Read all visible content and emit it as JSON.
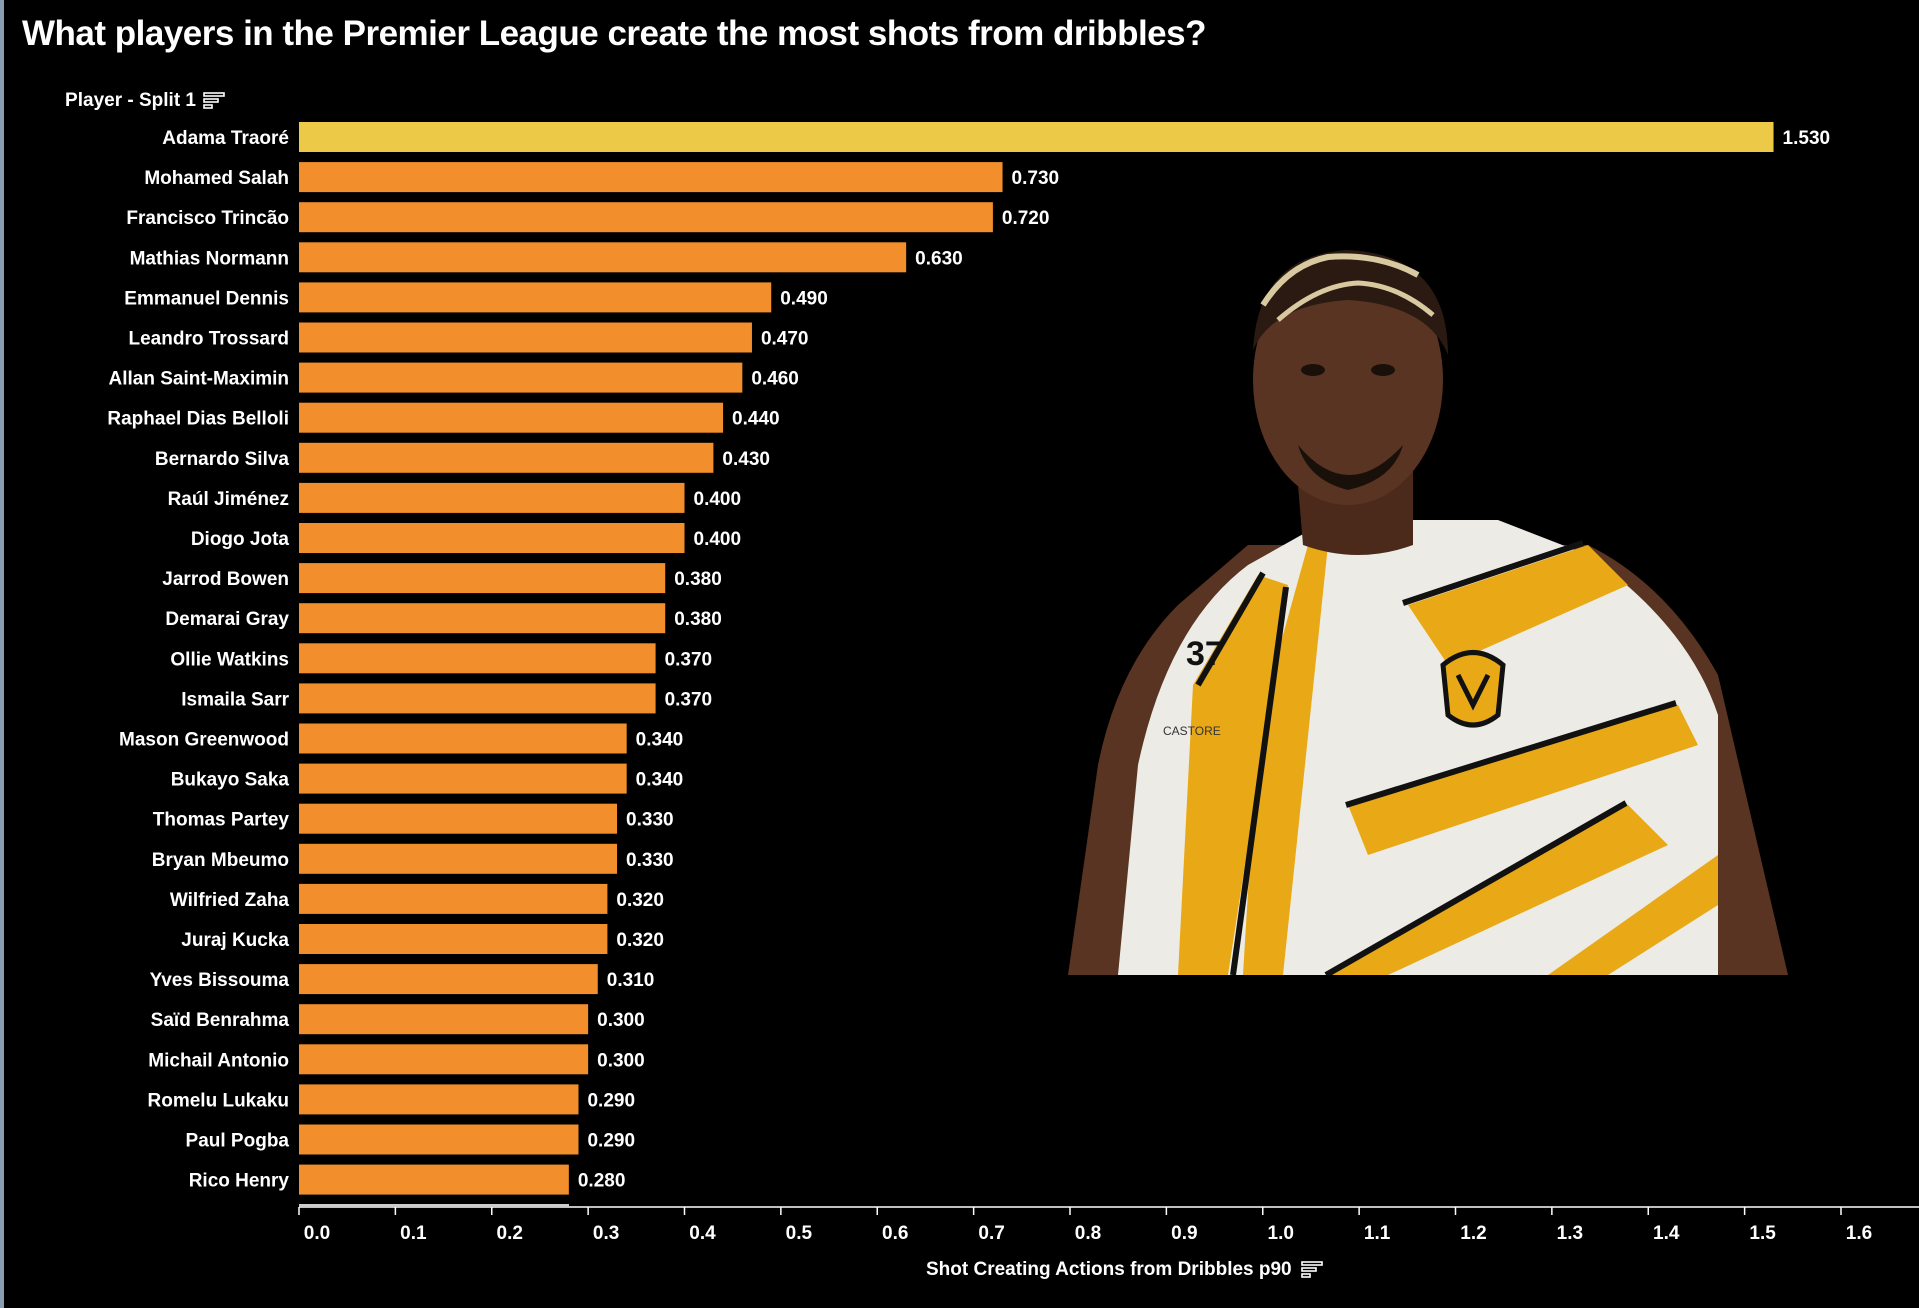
{
  "title": "What players in the Premier League create the most shots from dribbles?",
  "icons": {
    "sort_header": "sort-icon",
    "sort_axis": "sort-icon"
  },
  "colors": {
    "background": "#000000",
    "bar": "#f28e2b",
    "highlight_bar": "#edc948",
    "text": "#ffffff"
  },
  "photo": {
    "subject": "player-photo",
    "shirt_number": "37",
    "sponsor": "CASTORE"
  },
  "chart_data": {
    "type": "bar",
    "orientation": "horizontal",
    "title": "What players in the Premier League create the most shots from dribbles?",
    "ylabel": "Player - Split 1",
    "xlabel": "Shot Creating Actions from Dribbles p90",
    "xlim": [
      0,
      1.6
    ],
    "x_ticks": [
      "0.0",
      "0.1",
      "0.2",
      "0.3",
      "0.4",
      "0.5",
      "0.6",
      "0.7",
      "0.8",
      "0.9",
      "1.0",
      "1.1",
      "1.2",
      "1.3",
      "1.4",
      "1.5",
      "1.6"
    ],
    "grid": false,
    "highlight": "Adama Traoré",
    "categories": [
      "Adama Traoré",
      "Mohamed Salah",
      "Francisco Trincão",
      "Mathias Normann",
      "Emmanuel Dennis",
      "Leandro Trossard",
      "Allan Saint-Maximin",
      "Raphael Dias Belloli",
      "Bernardo Silva",
      "Raúl Jiménez",
      "Diogo Jota",
      "Jarrod Bowen",
      "Demarai Gray",
      "Ollie Watkins",
      "Ismaila Sarr",
      "Mason Greenwood",
      "Bukayo Saka",
      "Thomas Partey",
      "Bryan Mbeumo",
      "Wilfried Zaha",
      "Juraj Kucka",
      "Yves Bissouma",
      "Saïd Benrahma",
      "Michail Antonio",
      "Romelu Lukaku",
      "Paul Pogba",
      "Rico Henry"
    ],
    "values": [
      1.53,
      0.73,
      0.72,
      0.63,
      0.49,
      0.47,
      0.46,
      0.44,
      0.43,
      0.4,
      0.4,
      0.38,
      0.38,
      0.37,
      0.37,
      0.34,
      0.34,
      0.33,
      0.33,
      0.32,
      0.32,
      0.31,
      0.3,
      0.3,
      0.29,
      0.29,
      0.28
    ],
    "value_labels": [
      "1.530",
      "0.730",
      "0.720",
      "0.630",
      "0.490",
      "0.470",
      "0.460",
      "0.440",
      "0.430",
      "0.400",
      "0.400",
      "0.380",
      "0.380",
      "0.370",
      "0.370",
      "0.340",
      "0.340",
      "0.330",
      "0.330",
      "0.320",
      "0.320",
      "0.310",
      "0.300",
      "0.300",
      "0.290",
      "0.290",
      "0.280"
    ]
  }
}
